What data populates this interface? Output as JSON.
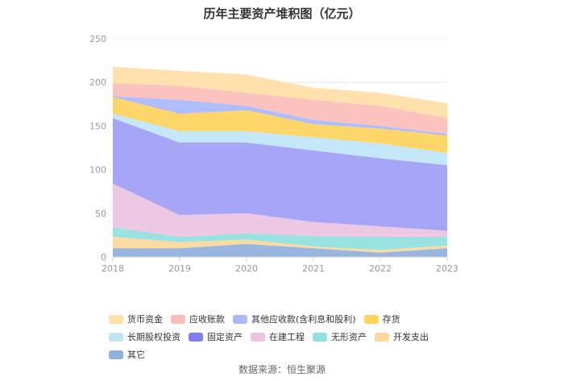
{
  "chart_data": {
    "type": "area",
    "title": "历年主要资产堆积图（亿元）",
    "x": [
      "2018",
      "2019",
      "2020",
      "2021",
      "2022",
      "2023"
    ],
    "ylim": [
      0,
      250
    ],
    "yticks": [
      "0",
      "50",
      "100",
      "150",
      "200",
      "250"
    ],
    "grid": true,
    "legend_position": "bottom",
    "series": [
      {
        "name": "其它",
        "color": "#8fb0dd",
        "values": [
          10,
          10,
          15,
          10,
          5,
          10
        ]
      },
      {
        "name": "开发支出",
        "color": "#ffd89a",
        "values": [
          13,
          7,
          5,
          2,
          3,
          3
        ]
      },
      {
        "name": "无形资产",
        "color": "#8fe0de",
        "values": [
          11,
          6,
          7,
          12,
          15,
          10
        ]
      },
      {
        "name": "在建工程",
        "color": "#eac3e0",
        "values": [
          50,
          25,
          23,
          16,
          12,
          7
        ]
      },
      {
        "name": "固定资产",
        "color": "#a09ef5",
        "values": [
          75,
          83,
          81,
          82,
          78,
          75
        ]
      },
      {
        "name": "长期股权投资",
        "color": "#bfe6f8",
        "values": [
          5,
          13,
          13,
          15,
          17,
          14
        ]
      },
      {
        "name": "存货",
        "color": "#ffd35c",
        "values": [
          19,
          20,
          24,
          15,
          17,
          20
        ]
      },
      {
        "name": "其他应收款(含利息和股利)",
        "color": "#a9b8ff",
        "values": [
          1,
          16,
          5,
          5,
          3,
          2
        ]
      },
      {
        "name": "应收账款",
        "color": "#fcbdb9",
        "values": [
          15,
          16,
          15,
          23,
          23,
          18
        ]
      },
      {
        "name": "货币资金",
        "color": "#ffe0a6",
        "values": [
          19,
          17,
          21,
          14,
          15,
          17
        ]
      }
    ]
  },
  "legend": [
    {
      "label": "货币资金",
      "color": "#ffe0a6"
    },
    {
      "label": "应收账款",
      "color": "#fcbdb9"
    },
    {
      "label": "其他应收款(含利息和股利)",
      "color": "#a9b8ff"
    },
    {
      "label": "存货",
      "color": "#ffd35c"
    },
    {
      "label": "长期股权投资",
      "color": "#bfe6f8"
    },
    {
      "label": "固定资产",
      "color": "#7f7ff0"
    },
    {
      "label": "在建工程",
      "color": "#eac3e0"
    },
    {
      "label": "无形资产",
      "color": "#8fe0de"
    },
    {
      "label": "开发支出",
      "color": "#ffd89a"
    },
    {
      "label": "其它",
      "color": "#8fb0dd"
    }
  ],
  "source": "数据来源：恒生聚源"
}
